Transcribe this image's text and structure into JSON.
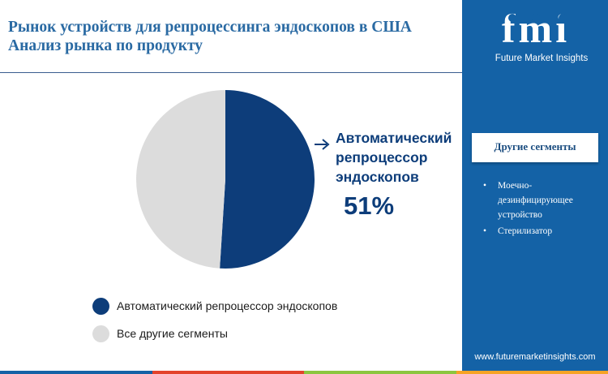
{
  "header": {
    "title_line1": "Рынок устройств для репроцессинга эндоскопов в США",
    "title_line2": "Анализ рынка по продукту"
  },
  "chart_data": {
    "type": "pie",
    "slices": [
      {
        "label": "Автоматический репроцессор эндоскопов",
        "value": 51,
        "color": "#0d3d7a"
      },
      {
        "label": "Все другие сегменты",
        "value": 49,
        "color": "#dcdcdc"
      }
    ],
    "callout": {
      "line1": "Автоматический",
      "line2": "репроцессор",
      "line3": "эндоскопов",
      "value": "51%"
    }
  },
  "legend": {
    "items": [
      {
        "label": "Автоматический репроцессор эндоскопов",
        "color": "#0d3d7a"
      },
      {
        "label": "Все другие сегменты",
        "color": "#dcdcdc"
      }
    ]
  },
  "sidebar": {
    "logo_letters": "fmi",
    "brand": "Future Market Insights",
    "segments_heading": "Другие сегменты",
    "segments": [
      "Моечно-дезинфицирующее устройство",
      "Стерилизатор"
    ],
    "website": "www.futuremarketinsights.com"
  },
  "colors": {
    "sidebar_bg": "#1462a6",
    "strip": [
      "#1462a6",
      "#e3432b",
      "#8cc63f",
      "#f7a325"
    ]
  }
}
